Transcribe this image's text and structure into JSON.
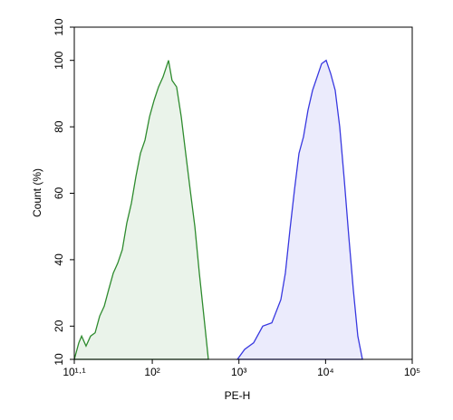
{
  "chart_data": {
    "type": "area",
    "x_label": "PE-H",
    "y_label": "Count (%)",
    "xscale": "log",
    "xlim": [
      12.59,
      100000
    ],
    "ylim": [
      10,
      110
    ],
    "xticks": [
      {
        "value": 12.59,
        "label": "10¹·¹"
      },
      {
        "value": 100,
        "label": "10²"
      },
      {
        "value": 1000,
        "label": "10³"
      },
      {
        "value": 10000,
        "label": "10⁴"
      },
      {
        "value": 100000,
        "label": "10⁵"
      }
    ],
    "yticks": [
      10,
      20,
      40,
      60,
      80,
      100,
      110
    ],
    "grid": false,
    "series": [
      {
        "color": "#2e8b2e",
        "x": [
          12.6,
          14.2,
          15.3,
          17.2,
          19.4,
          21.9,
          24.7,
          27.9,
          31.4,
          35.5,
          40.0,
          45.1,
          50.8,
          57.4,
          64.7,
          73.0,
          82.4,
          92.9,
          105,
          118,
          133,
          154,
          169,
          191,
          216,
          243,
          274,
          310,
          349,
          394,
          444
        ],
        "values": [
          10,
          15,
          17,
          14,
          17,
          18,
          23,
          26,
          31,
          36,
          39,
          43,
          51,
          57,
          65,
          72,
          76,
          83,
          88,
          92,
          95,
          100,
          94,
          92,
          83,
          72,
          61,
          50,
          36,
          23,
          10
        ]
      },
      {
        "color": "#3838e0",
        "x": [
          960,
          1164,
          1479,
          1884,
          2399,
          3048,
          3436,
          3880,
          4375,
          4932,
          5559,
          6266,
          7079,
          7980,
          8995,
          10160,
          11460,
          12910,
          14560,
          16440,
          18530,
          20890,
          23550,
          26610
        ],
        "values": [
          10,
          13,
          15,
          20,
          21,
          28,
          36,
          49,
          61,
          72,
          77,
          85,
          91,
          95,
          99,
          100,
          96,
          91,
          80,
          64,
          47,
          31,
          17,
          10
        ]
      }
    ]
  }
}
